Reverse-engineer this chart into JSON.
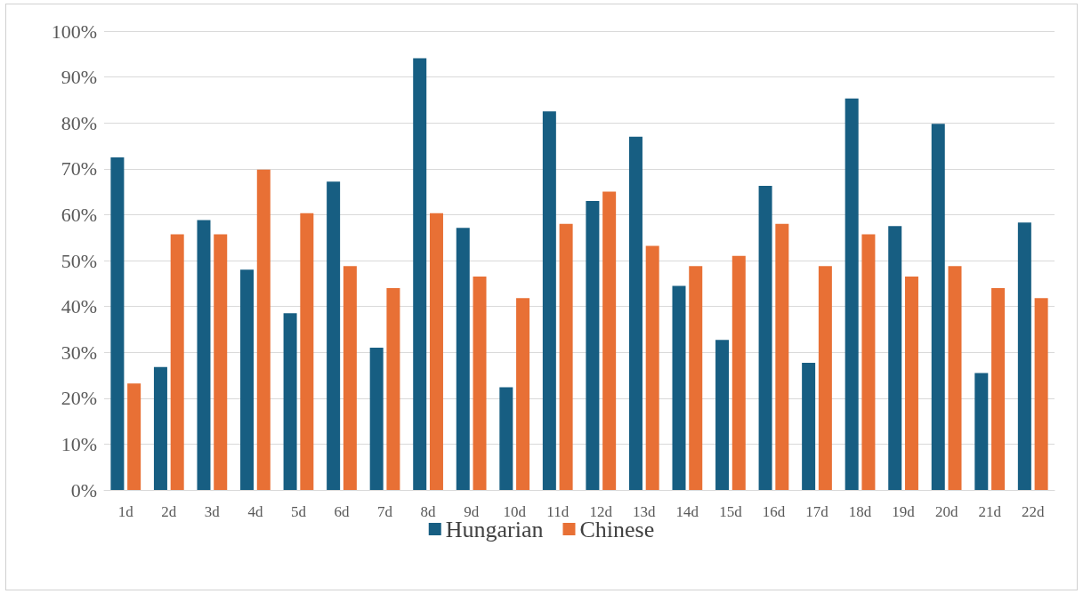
{
  "chart_data": {
    "type": "bar",
    "categories": [
      "1d",
      "2d",
      "3d",
      "4d",
      "5d",
      "6d",
      "7d",
      "8d",
      "9d",
      "10d",
      "11d",
      "12d",
      "13d",
      "14d",
      "15d",
      "16d",
      "17d",
      "18d",
      "19d",
      "20d",
      "21d",
      "22d"
    ],
    "series": [
      {
        "name": "Hungarian",
        "color": "#175e82",
        "values": [
          72.5,
          26.8,
          58.8,
          48.0,
          38.5,
          67.2,
          31.0,
          94.1,
          57.1,
          22.4,
          82.5,
          63.0,
          77.0,
          44.5,
          32.7,
          66.3,
          27.7,
          85.3,
          57.5,
          79.8,
          25.5,
          58.3
        ]
      },
      {
        "name": "Chinese",
        "color": "#e87035",
        "values": [
          23.2,
          55.7,
          55.7,
          69.8,
          60.3,
          48.8,
          44.0,
          60.3,
          46.5,
          41.8,
          58.0,
          65.0,
          53.2,
          48.8,
          51.0,
          58.0,
          48.8,
          55.7,
          46.5,
          48.8,
          44.0,
          41.8
        ]
      }
    ],
    "ylim": [
      0,
      100
    ],
    "yticks": [
      {
        "value": 0,
        "label": "0%"
      },
      {
        "value": 10,
        "label": "10%"
      },
      {
        "value": 20,
        "label": "20%"
      },
      {
        "value": 30,
        "label": "30%"
      },
      {
        "value": 40,
        "label": "40%"
      },
      {
        "value": 50,
        "label": "50%"
      },
      {
        "value": 60,
        "label": "60%"
      },
      {
        "value": 70,
        "label": "70%"
      },
      {
        "value": 80,
        "label": "80%"
      },
      {
        "value": 90,
        "label": "90%"
      },
      {
        "value": 100,
        "label": "100%"
      }
    ],
    "grid": "y",
    "legend": "bottom"
  }
}
